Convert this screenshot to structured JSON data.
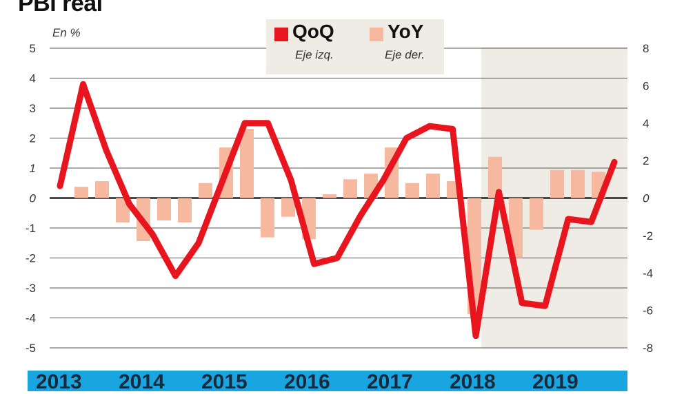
{
  "title": "PBI real",
  "unit_label": "En %",
  "legend": [
    {
      "name": "QoQ",
      "sub": "Eje izq.",
      "color": "#e8141e"
    },
    {
      "name": "YoY",
      "sub": "Eje der.",
      "color": "#f7b8a0"
    }
  ],
  "years": [
    "2013",
    "2014",
    "2015",
    "2016",
    "2017",
    "2018",
    "2019"
  ],
  "chart_data": {
    "type": "line+bar",
    "title": "PBI real",
    "ylabel": "En %",
    "left_axis": {
      "label": "QoQ (Eje izq.)",
      "range": [
        -5,
        5
      ],
      "ticks": [
        5,
        4,
        3,
        2,
        1,
        0,
        -1,
        -2,
        -3,
        -4,
        -5
      ]
    },
    "right_axis": {
      "label": "YoY (Eje der.)",
      "range": [
        -8,
        8
      ],
      "ticks": [
        8,
        6,
        4,
        2,
        0,
        -2,
        -4,
        -6,
        -8
      ]
    },
    "categories": [
      "2013",
      "2014",
      "2015",
      "2016",
      "2017",
      "2018",
      "2019"
    ],
    "shaded_region": {
      "from": "2018 Q2",
      "to": "2019 Q4",
      "color": "#eeece4"
    },
    "series": [
      {
        "name": "QoQ",
        "type": "line",
        "axis": "left",
        "color": "#e8141e",
        "values": [
          0.4,
          3.8,
          1.6,
          -0.2,
          -1.2,
          -2.6,
          -1.5,
          0.5,
          2.5,
          2.5,
          0.6,
          -2.2,
          -2.0,
          -0.6,
          0.6,
          2.0,
          2.4,
          2.3,
          -4.6,
          0.2,
          -3.5,
          -3.6,
          -0.7,
          -0.8,
          1.2
        ]
      },
      {
        "name": "YoY",
        "type": "bar",
        "axis": "right",
        "color": "#f7b8a0",
        "values": [
          0.6,
          0.9,
          -1.3,
          -2.3,
          -1.2,
          -1.3,
          0.8,
          2.7,
          3.7,
          -2.1,
          -1.0,
          -2.2,
          0.2,
          1.0,
          1.3,
          2.7,
          0.8,
          1.3,
          0.9,
          -6.2,
          2.2,
          -3.2,
          -1.7,
          1.5,
          1.5,
          1.4
        ]
      }
    ]
  }
}
